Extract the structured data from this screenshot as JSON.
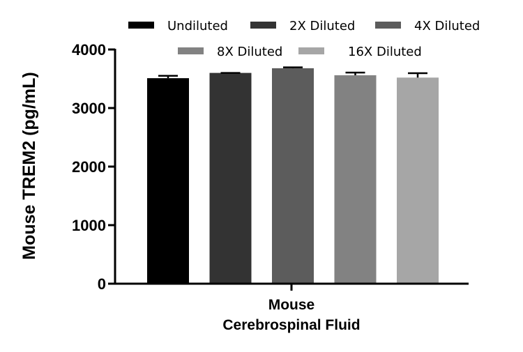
{
  "chart_data": {
    "type": "bar",
    "title": "",
    "ylabel": "Mouse TREM2 (pg/mL)",
    "xlabel": "",
    "group_label_lines": [
      "Mouse",
      "Cerebrospinal Fluid"
    ],
    "ylim": [
      0,
      4000
    ],
    "yticks": [
      0,
      1000,
      2000,
      3000,
      4000
    ],
    "ytick_labels": [
      "0",
      "1000",
      "2000",
      "3000",
      "4000"
    ],
    "grid": false,
    "legend_position": "top",
    "series": [
      {
        "name": "Undiluted",
        "value": 3510,
        "error": 40,
        "color": "#000000"
      },
      {
        "name": "2X Diluted",
        "value": 3600,
        "error": 0,
        "color": "#333333"
      },
      {
        "name": "4X Diluted",
        "value": 3680,
        "error": 15,
        "color": "#5c5c5c"
      },
      {
        "name": "8X Diluted",
        "value": 3560,
        "error": 45,
        "color": "#828282"
      },
      {
        "name": "16X Diluted",
        "value": 3520,
        "error": 75,
        "color": "#a6a6a6"
      }
    ]
  }
}
